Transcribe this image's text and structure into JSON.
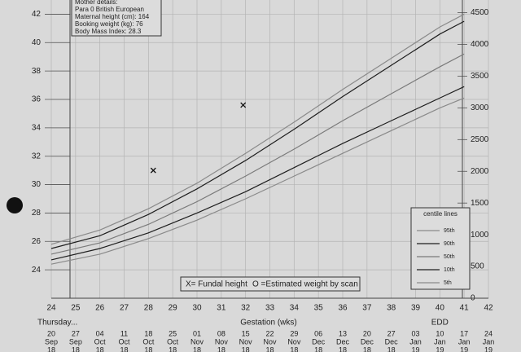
{
  "chart_data": {
    "type": "line",
    "x_label": "Gestation (wks)",
    "x_note": "Thursday...",
    "edd_label": "EDD",
    "x": [
      24,
      26,
      28,
      30,
      32,
      34,
      36,
      38,
      40,
      41
    ],
    "xlim": [
      24,
      42
    ],
    "xticks": [
      24,
      25,
      26,
      27,
      28,
      29,
      30,
      31,
      32,
      33,
      34,
      35,
      36,
      37,
      38,
      39,
      40,
      41,
      42
    ],
    "ylim": [
      22,
      43
    ],
    "yticks": [
      24,
      26,
      28,
      30,
      32,
      34,
      36,
      38,
      40,
      42
    ],
    "y2lim": [
      0,
      4700
    ],
    "y2ticks": [
      0,
      500,
      1000,
      1500,
      2000,
      2500,
      3000,
      3500,
      4000,
      4500
    ],
    "grid": true,
    "legend_title": "centile lines",
    "series": [
      {
        "name": "95th",
        "color": "#8a8a8a",
        "values": [
          25.8,
          26.8,
          28.3,
          30.1,
          32.2,
          34.4,
          36.7,
          38.9,
          41.1,
          42.0
        ]
      },
      {
        "name": "90th",
        "color": "#1e1e1e",
        "values": [
          25.5,
          26.4,
          27.9,
          29.7,
          31.7,
          33.9,
          36.2,
          38.4,
          40.6,
          41.5
        ]
      },
      {
        "name": "50th",
        "color": "#7a7a7a",
        "values": [
          25.1,
          25.9,
          27.2,
          28.8,
          30.6,
          32.5,
          34.5,
          36.4,
          38.3,
          39.2
        ]
      },
      {
        "name": "10th",
        "color": "#1e1e1e",
        "values": [
          24.7,
          25.5,
          26.6,
          28.0,
          29.5,
          31.2,
          32.9,
          34.5,
          36.1,
          36.9
        ]
      },
      {
        "name": "5th",
        "color": "#8a8a8a",
        "values": [
          24.4,
          25.1,
          26.2,
          27.5,
          29.0,
          30.6,
          32.2,
          33.8,
          35.4,
          36.1
        ]
      }
    ],
    "fundal_points": {
      "x": [
        28.2,
        31.9
      ],
      "values": [
        31,
        35.6
      ]
    },
    "marker_legend": [
      "X= Fundal height",
      "O =Estimated weight by scan"
    ],
    "mother_details": [
      "Mother details:",
      "Para 0  British European",
      "Maternal height (cm): 164",
      "Booking weight (kg): 76",
      "Body Mass Index: 28.3"
    ],
    "dates": [
      [
        "20",
        "Sep",
        "18"
      ],
      [
        "27",
        "Sep",
        "18"
      ],
      [
        "04",
        "Oct",
        "18"
      ],
      [
        "11",
        "Oct",
        "18"
      ],
      [
        "18",
        "Oct",
        "18"
      ],
      [
        "25",
        "Oct",
        "18"
      ],
      [
        "01",
        "Nov",
        "18"
      ],
      [
        "08",
        "Nov",
        "18"
      ],
      [
        "15",
        "Nov",
        "18"
      ],
      [
        "22",
        "Nov",
        "18"
      ],
      [
        "29",
        "Nov",
        "18"
      ],
      [
        "06",
        "Dec",
        "18"
      ],
      [
        "13",
        "Dec",
        "18"
      ],
      [
        "20",
        "Dec",
        "18"
      ],
      [
        "27",
        "Dec",
        "18"
      ],
      [
        "03",
        "Jan",
        "19"
      ],
      [
        "10",
        "Jan",
        "19"
      ],
      [
        "17",
        "Jan",
        "19"
      ],
      [
        "24",
        "Jan",
        "19"
      ]
    ]
  }
}
